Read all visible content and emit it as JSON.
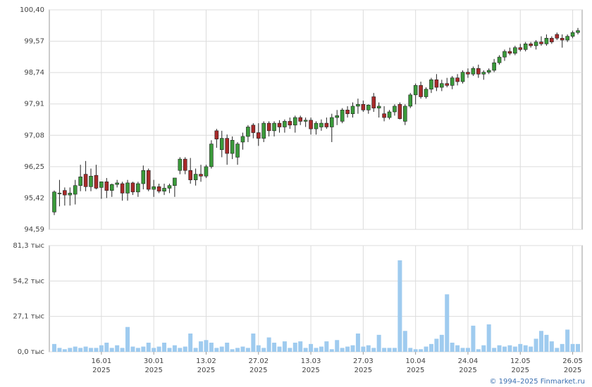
{
  "chart_data": [
    {
      "type": "candlestick",
      "ylim": [
        94.59,
        100.4
      ],
      "yticks": [
        {
          "value": 94.59,
          "label": "94,59"
        },
        {
          "value": 95.42,
          "label": "95,42"
        },
        {
          "value": 96.25,
          "label": "96,25"
        },
        {
          "value": 97.08,
          "label": "97,08"
        },
        {
          "value": 97.91,
          "label": "97,91"
        },
        {
          "value": 98.74,
          "label": "98,74"
        },
        {
          "value": 99.57,
          "label": "99,57"
        },
        {
          "value": 100.4,
          "label": "100,40"
        }
      ],
      "grid": true,
      "up_color": "#3a9a3a",
      "down_color": "#a82a2a",
      "candles": [
        [
          95.05,
          95.62,
          94.97,
          95.58
        ],
        [
          95.55,
          95.9,
          95.2,
          95.55
        ],
        [
          95.62,
          95.7,
          95.22,
          95.5
        ],
        [
          95.5,
          95.7,
          95.22,
          95.55
        ],
        [
          95.52,
          95.9,
          95.25,
          95.75
        ],
        [
          95.75,
          96.3,
          95.6,
          95.98
        ],
        [
          96.05,
          96.4,
          95.6,
          95.72
        ],
        [
          95.72,
          96.2,
          95.6,
          96.0
        ],
        [
          96.02,
          96.3,
          95.65,
          95.68
        ],
        [
          95.7,
          95.85,
          95.4,
          95.85
        ],
        [
          95.85,
          95.95,
          95.42,
          95.62
        ],
        [
          95.62,
          95.8,
          95.45,
          95.78
        ],
        [
          95.78,
          95.9,
          95.7,
          95.82
        ],
        [
          95.8,
          95.85,
          95.35,
          95.55
        ],
        [
          95.55,
          95.9,
          95.35,
          95.82
        ],
        [
          95.82,
          95.85,
          95.5,
          95.58
        ],
        [
          95.58,
          95.85,
          95.45,
          95.8
        ],
        [
          95.8,
          96.28,
          95.65,
          96.15
        ],
        [
          96.15,
          96.2,
          95.6,
          95.65
        ],
        [
          95.65,
          95.9,
          95.45,
          95.72
        ],
        [
          95.72,
          95.8,
          95.55,
          95.6
        ],
        [
          95.6,
          95.8,
          95.5,
          95.68
        ],
        [
          95.68,
          95.8,
          95.55,
          95.75
        ],
        [
          95.75,
          95.95,
          95.45,
          95.95
        ],
        [
          96.15,
          96.5,
          96.05,
          96.45
        ],
        [
          96.45,
          96.5,
          96.05,
          96.15
        ],
        [
          96.15,
          96.48,
          95.8,
          95.9
        ],
        [
          95.9,
          96.2,
          95.75,
          96.05
        ],
        [
          96.05,
          96.3,
          95.85,
          96.0
        ],
        [
          96.0,
          96.3,
          95.95,
          96.25
        ],
        [
          96.25,
          96.95,
          96.2,
          96.85
        ],
        [
          97.2,
          97.25,
          96.75,
          96.98
        ],
        [
          96.7,
          97.2,
          96.5,
          97.0
        ],
        [
          97.0,
          97.1,
          96.3,
          96.6
        ],
        [
          96.6,
          97.05,
          96.45,
          96.95
        ],
        [
          96.5,
          96.9,
          96.3,
          96.85
        ],
        [
          96.9,
          97.15,
          96.7,
          97.05
        ],
        [
          97.05,
          97.35,
          96.9,
          97.3
        ],
        [
          97.35,
          97.4,
          97.0,
          97.15
        ],
        [
          97.15,
          97.4,
          96.8,
          97.0
        ],
        [
          97.0,
          97.45,
          96.9,
          97.4
        ],
        [
          97.4,
          97.45,
          97.05,
          97.2
        ],
        [
          97.2,
          97.45,
          97.05,
          97.4
        ],
        [
          97.4,
          97.48,
          97.15,
          97.3
        ],
        [
          97.3,
          97.5,
          97.15,
          97.45
        ],
        [
          97.45,
          97.55,
          97.25,
          97.35
        ],
        [
          97.35,
          97.6,
          97.15,
          97.55
        ],
        [
          97.55,
          97.6,
          97.35,
          97.45
        ],
        [
          97.45,
          97.55,
          97.3,
          97.48
        ],
        [
          97.48,
          97.55,
          97.1,
          97.25
        ],
        [
          97.25,
          97.45,
          97.1,
          97.4
        ],
        [
          97.3,
          97.5,
          97.2,
          97.4
        ],
        [
          97.4,
          97.55,
          97.25,
          97.3
        ],
        [
          97.3,
          97.65,
          96.9,
          97.55
        ],
        [
          97.55,
          97.75,
          97.35,
          97.6
        ],
        [
          97.45,
          97.8,
          97.4,
          97.75
        ],
        [
          97.75,
          97.85,
          97.55,
          97.65
        ],
        [
          97.65,
          97.95,
          97.55,
          97.85
        ],
        [
          97.85,
          98.05,
          97.65,
          97.9
        ],
        [
          97.9,
          98.0,
          97.7,
          97.75
        ],
        [
          97.75,
          97.9,
          97.65,
          97.88
        ],
        [
          98.1,
          98.2,
          97.7,
          97.8
        ],
        [
          97.8,
          97.95,
          97.55,
          97.85
        ],
        [
          97.65,
          97.85,
          97.45,
          97.55
        ],
        [
          97.55,
          97.75,
          97.5,
          97.7
        ],
        [
          97.7,
          97.9,
          97.6,
          97.85
        ],
        [
          97.9,
          97.95,
          97.5,
          97.52
        ],
        [
          97.45,
          97.9,
          97.35,
          97.85
        ],
        [
          97.85,
          98.2,
          97.8,
          98.15
        ],
        [
          98.15,
          98.45,
          97.9,
          98.4
        ],
        [
          98.4,
          98.5,
          98.05,
          98.1
        ],
        [
          98.1,
          98.35,
          98.05,
          98.3
        ],
        [
          98.3,
          98.6,
          98.2,
          98.55
        ],
        [
          98.55,
          98.7,
          98.25,
          98.35
        ],
        [
          98.35,
          98.55,
          98.25,
          98.45
        ],
        [
          98.45,
          98.6,
          98.35,
          98.4
        ],
        [
          98.4,
          98.65,
          98.3,
          98.6
        ],
        [
          98.6,
          98.7,
          98.4,
          98.5
        ],
        [
          98.5,
          98.8,
          98.45,
          98.75
        ],
        [
          98.75,
          98.85,
          98.6,
          98.7
        ],
        [
          98.7,
          98.9,
          98.65,
          98.85
        ],
        [
          98.85,
          98.95,
          98.6,
          98.7
        ],
        [
          98.7,
          98.8,
          98.55,
          98.75
        ],
        [
          98.75,
          98.85,
          98.7,
          98.8
        ],
        [
          98.8,
          99.1,
          98.75,
          99.0
        ],
        [
          99.0,
          99.2,
          98.95,
          99.15
        ],
        [
          99.15,
          99.35,
          99.05,
          99.3
        ],
        [
          99.3,
          99.4,
          99.2,
          99.25
        ],
        [
          99.25,
          99.45,
          99.2,
          99.4
        ],
        [
          99.4,
          99.5,
          99.3,
          99.35
        ],
        [
          99.35,
          99.55,
          99.3,
          99.5
        ],
        [
          99.5,
          99.55,
          99.4,
          99.45
        ],
        [
          99.45,
          99.6,
          99.35,
          99.55
        ],
        [
          99.55,
          99.7,
          99.45,
          99.5
        ],
        [
          99.5,
          99.75,
          99.45,
          99.65
        ],
        [
          99.65,
          99.7,
          99.5,
          99.55
        ],
        [
          99.75,
          99.8,
          99.6,
          99.65
        ],
        [
          99.65,
          99.75,
          99.4,
          99.6
        ],
        [
          99.6,
          99.75,
          99.55,
          99.7
        ],
        [
          99.7,
          99.85,
          99.65,
          99.8
        ],
        [
          99.8,
          99.92,
          99.75,
          99.85
        ]
      ]
    },
    {
      "type": "bar",
      "ylim": [
        0,
        81.3
      ],
      "yticks": [
        {
          "value": 0,
          "label": "0,0 тыс"
        },
        {
          "value": 27.1,
          "label": "27,1 тыс"
        },
        {
          "value": 54.2,
          "label": "54,2 тыс"
        },
        {
          "value": 81.3,
          "label": "81,3 тыс"
        }
      ],
      "grid": true,
      "color": "#9fcbef",
      "categories": [
        null,
        null,
        null,
        null,
        null,
        null,
        null,
        null,
        null,
        "16.01",
        null,
        null,
        null,
        null,
        null,
        null,
        null,
        null,
        null,
        "30.01",
        null,
        null,
        null,
        null,
        null,
        null,
        null,
        null,
        null,
        "13.02",
        null,
        null,
        null,
        null,
        null,
        null,
        null,
        null,
        null,
        "27.02",
        null,
        null,
        null,
        null,
        null,
        null,
        null,
        null,
        null,
        "13.03",
        null,
        null,
        null,
        null,
        null,
        null,
        null,
        null,
        null,
        "27.03",
        null,
        null,
        null,
        null,
        null,
        null,
        null,
        null,
        null,
        "10.04",
        null,
        null,
        null,
        null,
        null,
        null,
        null,
        null,
        null,
        "24.04",
        null,
        null,
        null,
        null,
        null,
        null,
        null,
        null,
        null,
        "12.05",
        null,
        null,
        null,
        null,
        null,
        null,
        null,
        null,
        null,
        "26.05",
        null
      ],
      "category_years": [
        null,
        null,
        null,
        null,
        null,
        null,
        null,
        null,
        null,
        "2025",
        null,
        null,
        null,
        null,
        null,
        null,
        null,
        null,
        null,
        "2025",
        null,
        null,
        null,
        null,
        null,
        null,
        null,
        null,
        null,
        "2025",
        null,
        null,
        null,
        null,
        null,
        null,
        null,
        null,
        null,
        "2025",
        null,
        null,
        null,
        null,
        null,
        null,
        null,
        null,
        null,
        "2025",
        null,
        null,
        null,
        null,
        null,
        null,
        null,
        null,
        null,
        "2025",
        null,
        null,
        null,
        null,
        null,
        null,
        null,
        null,
        null,
        "2025",
        null,
        null,
        null,
        null,
        null,
        null,
        null,
        null,
        null,
        "2025",
        null,
        null,
        null,
        null,
        null,
        null,
        null,
        null,
        null,
        "2025",
        null,
        null,
        null,
        null,
        null,
        null,
        null,
        null,
        null,
        "2025",
        null
      ],
      "values": [
        6,
        3,
        2,
        3,
        4,
        3,
        4,
        3,
        3,
        5,
        7,
        3,
        5,
        3,
        19,
        4,
        3,
        4,
        7,
        3,
        4,
        7,
        3,
        5,
        3,
        4,
        14,
        3,
        8,
        9,
        7,
        3,
        4,
        7,
        2,
        3,
        4,
        3,
        14,
        5,
        3,
        11,
        7,
        4,
        8,
        3,
        7,
        8,
        3,
        6,
        3,
        4,
        8,
        2,
        9,
        3,
        4,
        5,
        14,
        4,
        5,
        3,
        13,
        3,
        3,
        3,
        70,
        16,
        3,
        2,
        2,
        4,
        6,
        10,
        13,
        44,
        7,
        5,
        3,
        3,
        20,
        2,
        5,
        21,
        3,
        5,
        4,
        5,
        4,
        6,
        5,
        4,
        10,
        16,
        13,
        8,
        3,
        6,
        17,
        6,
        6
      ]
    }
  ],
  "footer": "© 1994–2025 Finmarket.ru"
}
